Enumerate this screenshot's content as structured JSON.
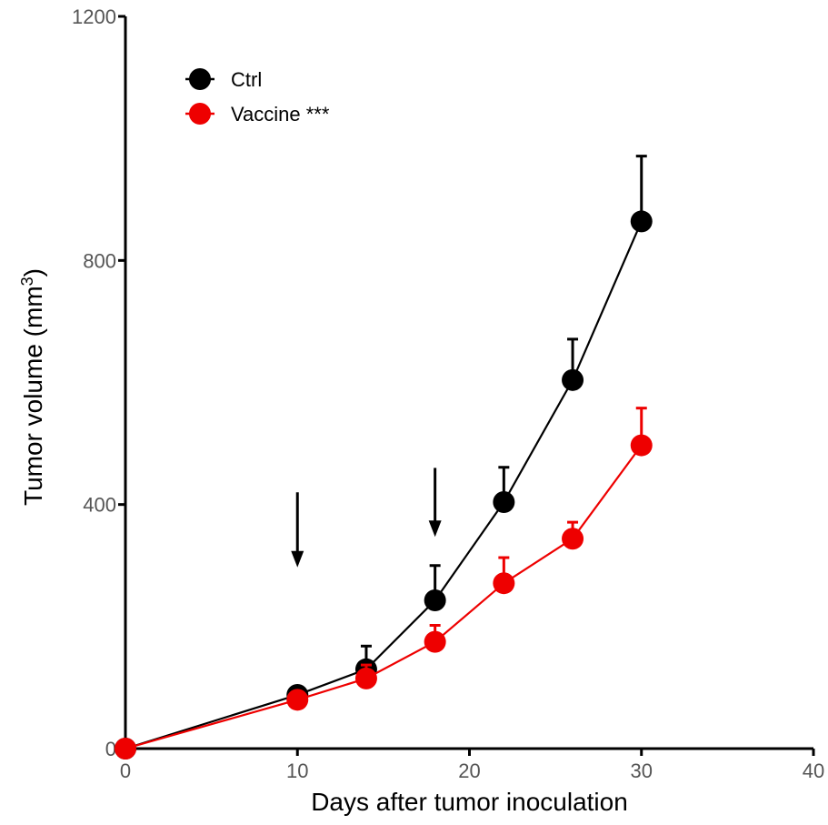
{
  "chart_data": {
    "type": "line",
    "title": "",
    "xlabel": "Days after tumor inoculation",
    "ylabel_main": "Tumor volume (mm",
    "ylabel_sup": "3",
    "ylabel_close": ")",
    "xlim": [
      0,
      40
    ],
    "ylim": [
      0,
      1200
    ],
    "xticks": [
      0,
      10,
      20,
      30,
      40
    ],
    "yticks": [
      0,
      400,
      800,
      1200
    ],
    "grid": false,
    "legend_position": "top-left",
    "series": [
      {
        "name": "Ctrl",
        "color": "#000000",
        "x": [
          0,
          10,
          14,
          18,
          22,
          26,
          30
        ],
        "y": [
          0,
          88,
          130,
          243,
          404,
          604,
          864
        ],
        "error": [
          0,
          0,
          38,
          57,
          57,
          67,
          107
        ]
      },
      {
        "name": "Vaccine ***",
        "color": "#ee0000",
        "x": [
          0,
          10,
          14,
          18,
          22,
          26,
          30
        ],
        "y": [
          0,
          80,
          115,
          175,
          271,
          344,
          497
        ],
        "error": [
          0,
          0,
          22,
          27,
          42,
          27,
          61
        ]
      }
    ],
    "annotations": [
      {
        "type": "arrow-down",
        "x": 10,
        "y_from": 420,
        "y_to": 300
      },
      {
        "type": "arrow-down",
        "x": 18,
        "y_from": 460,
        "y_to": 350
      }
    ]
  }
}
